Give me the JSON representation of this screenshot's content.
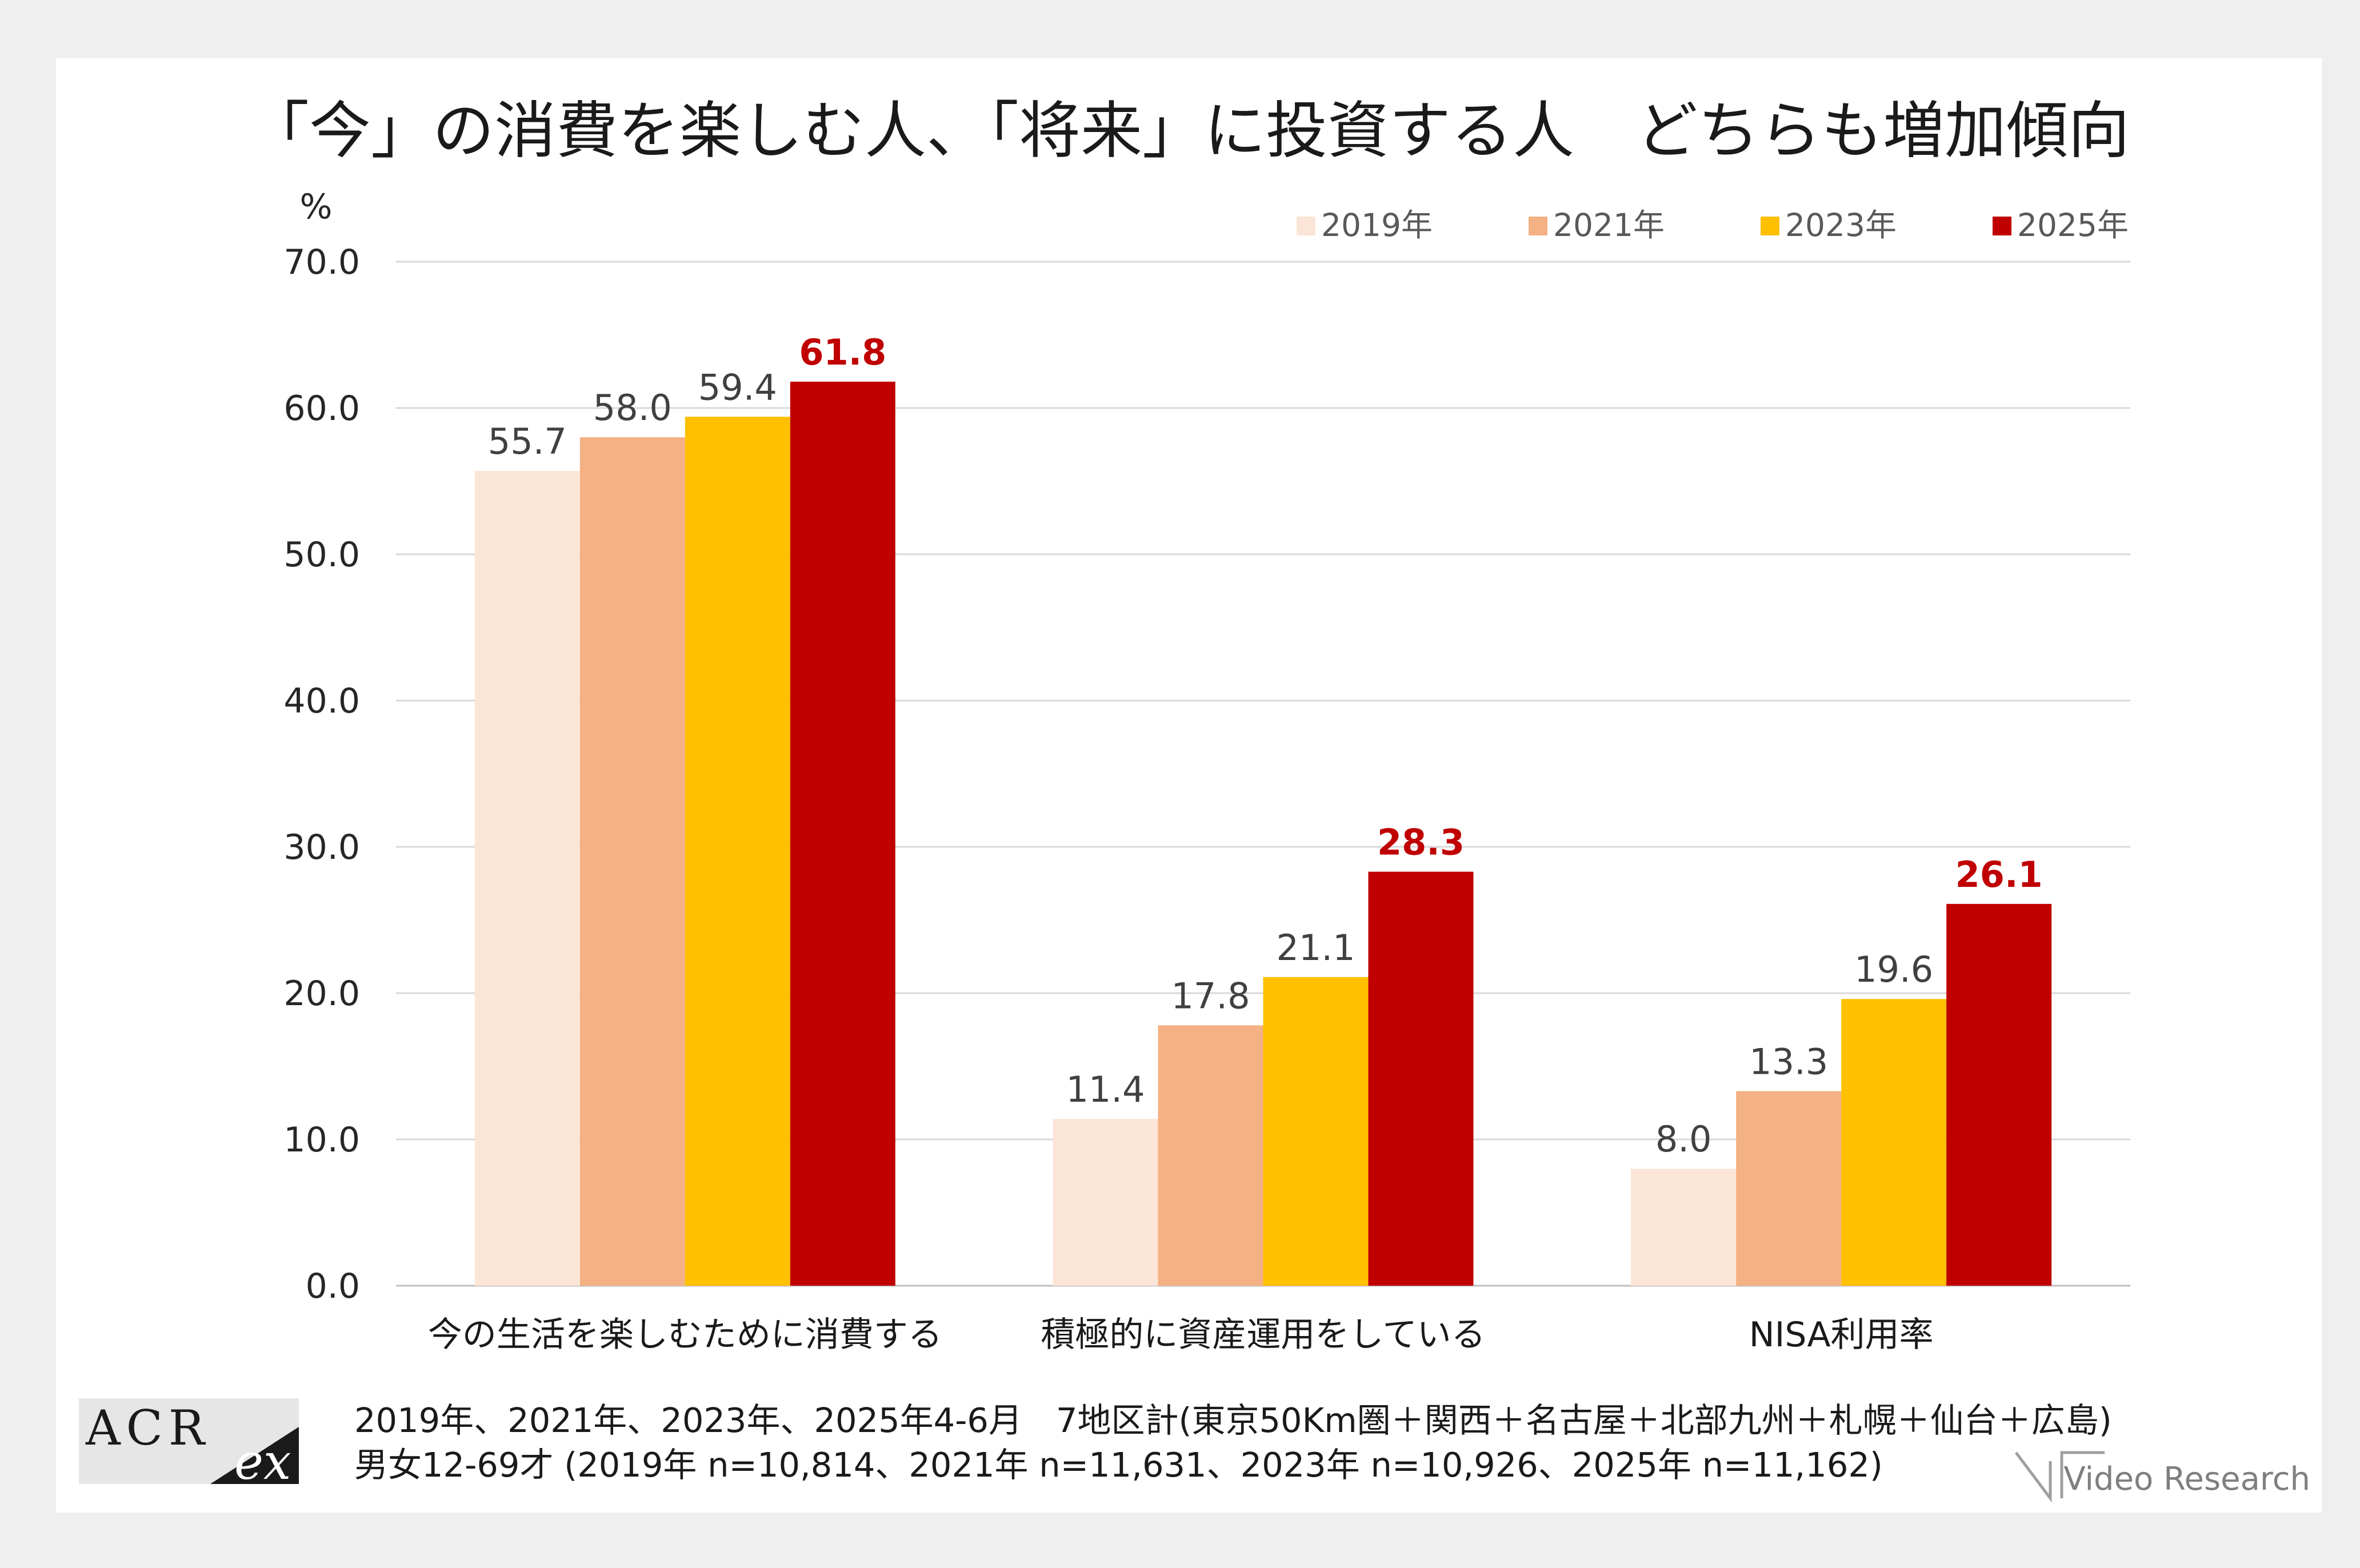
{
  "chart_data": {
    "type": "bar",
    "title": "「今」の消費を楽しむ人、「将来」に投資する人　どちらも増加傾向",
    "ylabel": "%",
    "ylim": [
      0,
      70
    ],
    "yticks": [
      "0.0",
      "10.0",
      "20.0",
      "30.0",
      "40.0",
      "50.0",
      "60.0",
      "70.0"
    ],
    "grid": true,
    "legend": "top-right",
    "categories": [
      "今の生活を楽しむために消費する",
      "積極的に資産運用をしている",
      "NISA利用率"
    ],
    "series": [
      {
        "name": "2019年",
        "color": "#fbe5d6",
        "values": [
          55.7,
          11.4,
          8.0
        ],
        "labels": [
          "55.7",
          "11.4",
          "8.0"
        ]
      },
      {
        "name": "2021年",
        "color": "#f4b183",
        "values": [
          58.0,
          17.8,
          13.3
        ],
        "labels": [
          "58.0",
          "17.8",
          "13.3"
        ]
      },
      {
        "name": "2023年",
        "color": "#ffc000",
        "values": [
          59.4,
          21.1,
          19.6
        ],
        "labels": [
          "59.4",
          "21.1",
          "19.6"
        ]
      },
      {
        "name": "2025年",
        "color": "#c00000",
        "values": [
          61.8,
          28.3,
          26.1
        ],
        "labels": [
          "61.8",
          "28.3",
          "26.1"
        ],
        "highlight": true
      }
    ]
  },
  "footer": {
    "logo_text_1": "ACR",
    "logo_text_2": "ex",
    "note_line1": "2019年、2021年、2023年、2025年4-6月　7地区計(東京50Km圏＋関西＋名古屋＋北部九州＋札幌＋仙台＋広島)",
    "note_line2": "男女12-69才 (2019年 n=10,814、2021年 n=11,631、2023年 n=10,926、2025年 n=11,162)",
    "brand": "Video Research"
  }
}
